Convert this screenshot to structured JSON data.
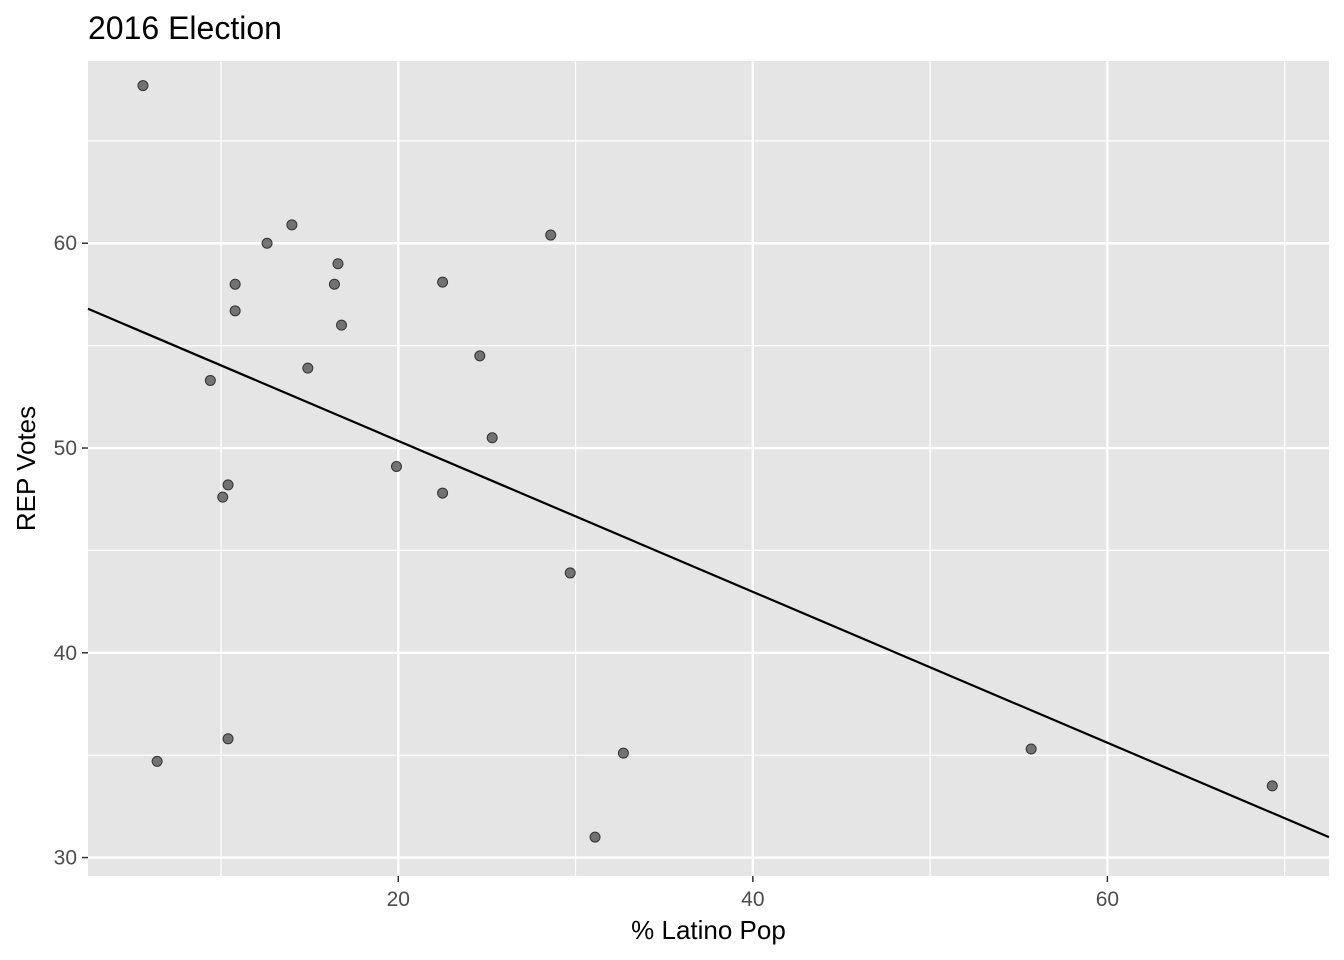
{
  "chart_data": {
    "type": "scatter",
    "title": "2016 Election",
    "xlabel": "% Latino Pop",
    "ylabel": "REP Votes",
    "xlim": [
      2.5,
      72.5
    ],
    "ylim": [
      29.1,
      68.9
    ],
    "x_ticks": [
      20,
      40,
      60
    ],
    "x_tick_labels": [
      "20",
      "40",
      "60"
    ],
    "x_minor_ticks": [
      10,
      30,
      50,
      70
    ],
    "y_ticks": [
      30,
      40,
      50,
      60
    ],
    "y_tick_labels": [
      "30",
      "40",
      "50",
      "60"
    ],
    "y_minor_ticks": [
      35,
      45,
      55,
      65
    ],
    "grid": true,
    "panel_background": "#e5e5e5",
    "grid_color": "#ffffff",
    "point_color": "#555555",
    "line_color": "#000000",
    "points": [
      {
        "x": 5.6,
        "y": 67.7
      },
      {
        "x": 6.4,
        "y": 34.7
      },
      {
        "x": 9.4,
        "y": 53.3
      },
      {
        "x": 10.1,
        "y": 47.6
      },
      {
        "x": 10.4,
        "y": 48.2
      },
      {
        "x": 10.4,
        "y": 35.8
      },
      {
        "x": 10.8,
        "y": 58.0
      },
      {
        "x": 10.8,
        "y": 56.7
      },
      {
        "x": 12.6,
        "y": 60.0
      },
      {
        "x": 14.0,
        "y": 60.9
      },
      {
        "x": 14.9,
        "y": 53.9
      },
      {
        "x": 16.4,
        "y": 58.0
      },
      {
        "x": 16.6,
        "y": 59.0
      },
      {
        "x": 16.8,
        "y": 56.0
      },
      {
        "x": 19.9,
        "y": 49.1
      },
      {
        "x": 22.5,
        "y": 58.1
      },
      {
        "x": 22.5,
        "y": 47.8
      },
      {
        "x": 24.6,
        "y": 54.5
      },
      {
        "x": 25.3,
        "y": 50.5
      },
      {
        "x": 28.6,
        "y": 60.4
      },
      {
        "x": 29.7,
        "y": 43.9
      },
      {
        "x": 31.1,
        "y": 31.0
      },
      {
        "x": 32.7,
        "y": 35.1
      },
      {
        "x": 55.7,
        "y": 35.3
      },
      {
        "x": 69.3,
        "y": 33.5
      }
    ],
    "trend_line": {
      "x": [
        2.5,
        72.5
      ],
      "y": [
        56.8,
        31.0
      ]
    }
  }
}
